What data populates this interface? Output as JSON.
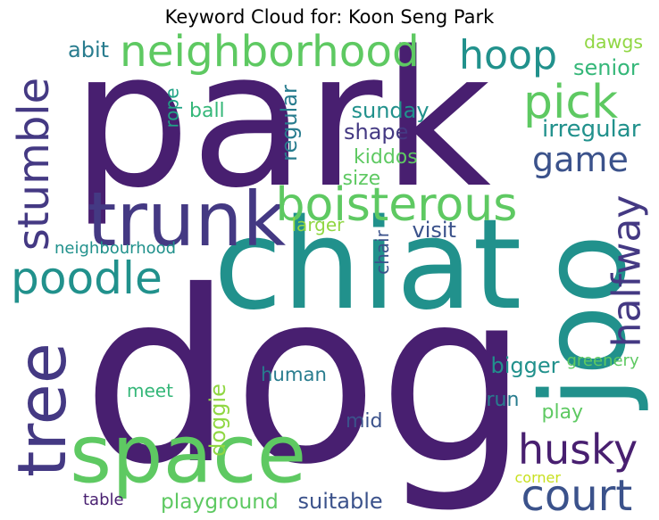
{
  "title": "Keyword Cloud for: Koon Seng Park",
  "palette": {
    "dark_purple": "#481f70",
    "indigo": "#443983",
    "slate_blue": "#3b528b",
    "steel_blue": "#31688e",
    "teal_blue": "#287c8e",
    "teal": "#21918c",
    "sea_green": "#20a386",
    "green": "#35b779",
    "light_green": "#5ec962",
    "lime": "#90d743",
    "yellow_green": "#c8e020",
    "background": "#ffffff"
  },
  "words": [
    {
      "text": "park",
      "color": "#481f70"
    },
    {
      "text": "dog",
      "color": "#481f70"
    },
    {
      "text": "chiat",
      "color": "#21918c"
    },
    {
      "text": "joo",
      "color": "#21918c"
    },
    {
      "text": "space",
      "color": "#5ec962"
    },
    {
      "text": "tree",
      "color": "#443983"
    },
    {
      "text": "trunk",
      "color": "#443983"
    },
    {
      "text": "neighborhood",
      "color": "#5ec962"
    },
    {
      "text": "stumble",
      "color": "#443983"
    },
    {
      "text": "boisterous",
      "color": "#5ec962"
    },
    {
      "text": "hoop",
      "color": "#21918c"
    },
    {
      "text": "pick",
      "color": "#5ec962"
    },
    {
      "text": "game",
      "color": "#3b528b"
    },
    {
      "text": "court",
      "color": "#3b528b"
    },
    {
      "text": "husky",
      "color": "#481f70"
    },
    {
      "text": "halfway",
      "color": "#443983"
    },
    {
      "text": "poodle",
      "color": "#21918c"
    },
    {
      "text": "human",
      "color": "#287c8e"
    },
    {
      "text": "playground",
      "color": "#5ec962"
    },
    {
      "text": "suitable",
      "color": "#3b528b"
    },
    {
      "text": "meet",
      "color": "#35b779"
    },
    {
      "text": "doggie",
      "color": "#90d743"
    },
    {
      "text": "mid",
      "color": "#3b528b"
    },
    {
      "text": "run",
      "color": "#287c8e"
    },
    {
      "text": "play",
      "color": "#5ec962"
    },
    {
      "text": "bigger",
      "color": "#21918c"
    },
    {
      "text": "greenery",
      "color": "#5ec962"
    },
    {
      "text": "corner",
      "color": "#c8e020"
    },
    {
      "text": "table",
      "color": "#481f70"
    },
    {
      "text": "visit",
      "color": "#3b528b"
    },
    {
      "text": "larger",
      "color": "#90d743"
    },
    {
      "text": "chair",
      "color": "#3b528b"
    },
    {
      "text": "neighbourhood",
      "color": "#21918c"
    },
    {
      "text": "size",
      "color": "#5ec962"
    },
    {
      "text": "kiddos",
      "color": "#5ec962"
    },
    {
      "text": "shape",
      "color": "#443983"
    },
    {
      "text": "sunday",
      "color": "#21918c"
    },
    {
      "text": "regular",
      "color": "#287c8e"
    },
    {
      "text": "ball",
      "color": "#35b779"
    },
    {
      "text": "rope",
      "color": "#20a386"
    },
    {
      "text": "abit",
      "color": "#287c8e"
    },
    {
      "text": "dawgs",
      "color": "#90d743"
    },
    {
      "text": "senior",
      "color": "#35b779"
    },
    {
      "text": "irregular",
      "color": "#21918c"
    }
  ]
}
